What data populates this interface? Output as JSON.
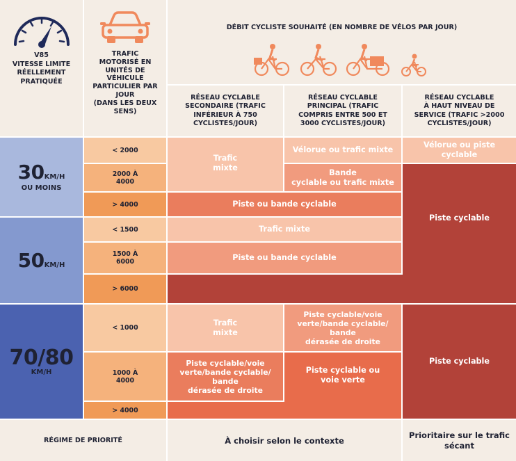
{
  "colors": {
    "header_bg": "#f4ede5",
    "speed30": "#a9b8dd",
    "speed50": "#8499cf",
    "speed70": "#4b62b0",
    "traffic_light": "#f8c9a1",
    "traffic_mid": "#f5b27c",
    "traffic_dark": "#f09a57",
    "cell_pale": "#f8c4aa",
    "cell_light": "#f19b7e",
    "cell_medium": "#ea7d5d",
    "cell_strong": "#e86c4b",
    "cell_dark": "#b24239",
    "icon_orange": "#f0895c",
    "icon_navy": "#1f2a5a"
  },
  "header": {
    "v85_title": "V85\nVITESSE LIMITE\nRÉELLEMENT\nPRATIQUÉE",
    "traffic_title": "TRAFIC\nMOTORISÉ EN\nUNITÉS DE\nVÉHICULE\nPARTICULIER PAR\nJOUR\n(DANS LES DEUX\nSENS)",
    "cyclist_flow_title": "DÉBIT CYCLISTE SOUHAITÉ (EN NOMBRE DE VÉLOS PAR JOUR)",
    "col_secondary": "RÉSEAU CYCLABLE\nSECONDAIRE (TRAFIC\nINFÉRIEUR À 750\nCYCLISTES/JOUR)",
    "col_principal": "RÉSEAU CYCLABLE\nPRINCIPAL (TRAFIC\nCOMPRIS ENTRE 500 ET\n3000 CYCLISTES/JOUR)",
    "col_high": "RÉSEAU CYCLABLE\nÀ HAUT NIVEAU DE\nSERVICE (TRAFIC >2000\nCYCLISTES/JOUR)",
    "icons": {
      "speedometer": "speedometer-icon",
      "car": "car-icon",
      "cyclists": [
        "cyclist-woman-basket-icon",
        "cyclist-icon",
        "cargo-bike-icon",
        "child-cyclist-icon"
      ]
    }
  },
  "speeds": {
    "s30": {
      "value": "30",
      "unit": "KM/H",
      "note": "OU MOINS"
    },
    "s50": {
      "value": "50",
      "unit": "KM/H"
    },
    "s70": {
      "value": "70/80",
      "unit": "KM/H"
    }
  },
  "traffic": {
    "s30_low": "< 2000",
    "s30_mid": "2000 À\n4000",
    "s30_high": "> 4000",
    "s50_low": "< 1500",
    "s50_mid": "1500 À\n6000",
    "s50_high": "> 6000",
    "s70_low": "< 1000",
    "s70_mid": "1000 À\n4000",
    "s70_high": "> 4000"
  },
  "cells": {
    "s30_sec_mixed": "Trafic\nmixte",
    "s30_pr_velorue": "Vélorue ou trafic mixte",
    "s30_pr_bande": "Bande\ncyclable ou trafic mixte",
    "s30_high_velorue": "Vélorue ou piste\ncyclable",
    "s30_piste_bande": "Piste ou bande cyclable",
    "s50_mixed": "Trafic mixte",
    "s50_piste_bande": "Piste ou bande cyclable",
    "piste_cyclable_upper": "Piste cyclable",
    "s70_sec_mixed": "Trafic\nmixte",
    "s70_pr_piste_voie": "Piste cyclable/voie\nverte/bande cyclable/\nbande\ndérasée de droite",
    "s70_sec_piste_voie": "Piste cyclable/voie\nverte/bande cyclable/\nbande\ndérasée de droite",
    "s70_pr_piste_ou_voie": "Piste cyclable ou\nvoie verte",
    "piste_cyclable_lower": "Piste cyclable"
  },
  "footer": {
    "priority": "RÉGIME DE PRIORITÉ",
    "context": "À choisir selon le contexte",
    "priority_high": "Prioritaire sur le trafic\nsécant"
  }
}
